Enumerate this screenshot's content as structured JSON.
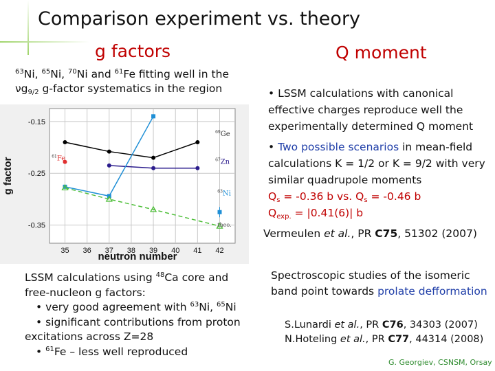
{
  "title": "Comparison experiment vs. theory",
  "g_section": {
    "heading": "g factors",
    "intro": [
      {
        "t": "63",
        "s": "sup"
      },
      {
        "t": "Ni, "
      },
      {
        "t": "65",
        "s": "sup"
      },
      {
        "t": "Ni, "
      },
      {
        "t": "70",
        "s": "sup"
      },
      {
        "t": "Ni and "
      },
      {
        "t": "61",
        "s": "sup"
      },
      {
        "t": "Fe fitting well in the "
      },
      {
        "t": "νg"
      },
      {
        "t": "9/2",
        "s": "sub"
      },
      {
        "t": " g-factor systematics in the region"
      }
    ],
    "calc_lines": [
      {
        "indent": false,
        "parts": [
          {
            "t": "LSSM calculations using "
          },
          {
            "t": "48",
            "s": "sup"
          },
          {
            "t": "Ca core and"
          }
        ]
      },
      {
        "indent": false,
        "parts": [
          {
            "t": "free-nucleon g factors:"
          }
        ]
      },
      {
        "indent": true,
        "parts": [
          {
            "t": "• very good agreement with "
          },
          {
            "t": "63",
            "s": "sup"
          },
          {
            "t": "Ni, "
          },
          {
            "t": "65",
            "s": "sup"
          },
          {
            "t": "Ni"
          }
        ]
      },
      {
        "indent": true,
        "parts": [
          {
            "t": "• significant contributions from proton"
          }
        ]
      },
      {
        "indent": false,
        "parts": [
          {
            "t": "excitations across Z=28"
          }
        ]
      },
      {
        "indent": true,
        "parts": [
          {
            "t": "• "
          },
          {
            "t": "61",
            "s": "sup"
          },
          {
            "t": "Fe – less well reproduced"
          }
        ]
      }
    ]
  },
  "q_section": {
    "heading": "Q moment",
    "items": [
      [
        {
          "t": "• LSSM calculations with canonical effective charges reproduce well the experimentally determined Q moment"
        }
      ],
      [
        {
          "t": "• "
        },
        {
          "t": "Two possible scenarios",
          "c": "blue"
        },
        {
          "t": " in mean-field calculations K = 1/2 or K = 9/2 with very similar quadrupole moments"
        }
      ]
    ],
    "q_values": [
      [
        {
          "t": "Q",
          "c": "red"
        },
        {
          "t": "s",
          "s": "sub",
          "c": "red"
        },
        {
          "t": " = -0.36 b vs. Q",
          "c": "red"
        },
        {
          "t": "s",
          "s": "sub",
          "c": "red"
        },
        {
          "t": " = -0.46 b",
          "c": "red"
        }
      ],
      [
        {
          "t": "Q",
          "c": "red"
        },
        {
          "t": "exp.",
          "s": "sub",
          "c": "red"
        },
        {
          "t": " = |0.41(6)| b",
          "c": "red"
        }
      ]
    ],
    "reference": [
      {
        "t": "Vermeulen "
      },
      {
        "t": "et al.",
        "i": true
      },
      {
        "t": ", PR "
      },
      {
        "t": "C75",
        "b": true
      },
      {
        "t": ", 51302 (2007)"
      }
    ]
  },
  "spectroscopy": [
    {
      "t": "Spectroscopic studies of the isomeric band point towards "
    },
    {
      "t": "prolate defformation",
      "c": "blue"
    }
  ],
  "references": [
    [
      {
        "t": "S.Lunardi "
      },
      {
        "t": "et al.",
        "i": true
      },
      {
        "t": ", PR "
      },
      {
        "t": "C76",
        "b": true
      },
      {
        "t": ", 34303 (2007)"
      }
    ],
    [
      {
        "t": "N.Hoteling "
      },
      {
        "t": "et al.",
        "i": true
      },
      {
        "t": ", PR "
      },
      {
        "t": "C77",
        "b": true
      },
      {
        "t": ", 44314 (2008)"
      }
    ]
  ],
  "credit": "G. Georgiev, CSNSM, Orsay",
  "chart_data": {
    "type": "line",
    "xlabel": "neutron number",
    "ylabel": "g factor",
    "xticks": [
      "35",
      "36",
      "37",
      "38",
      "39",
      "40",
      "41",
      "42"
    ],
    "yticks": [
      "-0.15",
      "-0.25",
      "-0.35"
    ],
    "xlim": [
      34.3,
      42.7
    ],
    "ylim": [
      -0.385,
      -0.125
    ],
    "grid": true,
    "series": [
      {
        "name": "Ge",
        "prefix": "69",
        "color": "#000000",
        "marker": "circle",
        "dash": false,
        "x": [
          35,
          37,
          39,
          41
        ],
        "y": [
          -0.19,
          -0.208,
          -0.22,
          -0.19
        ]
      },
      {
        "name": "Zn",
        "prefix": "67",
        "color": "#2a1b8c",
        "marker": "circle",
        "dash": false,
        "x": [
          37,
          39,
          41
        ],
        "y": [
          -0.235,
          -0.24,
          -0.24
        ]
      },
      {
        "name": "Ni",
        "prefix": "63",
        "color": "#1f8fd6",
        "marker": "square",
        "dash": false,
        "x": [
          35,
          37,
          39
        ],
        "y": [
          -0.276,
          -0.294,
          -0.14
        ],
        "yerr": [
          0.003,
          0.003,
          0.004
        ]
      },
      {
        "name": "Fe",
        "prefix": "61",
        "color": "#e03030",
        "marker": "circle",
        "dash": false,
        "x": [
          35
        ],
        "y": [
          -0.228
        ]
      },
      {
        "name": "theo.",
        "prefix": "",
        "color": "#4fbf3a",
        "marker": "triangle",
        "dash": true,
        "x": [
          35,
          37,
          39,
          42
        ],
        "y": [
          -0.278,
          -0.3,
          -0.32,
          -0.352
        ]
      },
      {
        "name": "Ni point",
        "prefix": "",
        "color": "#1f8fd6",
        "marker": "square",
        "dash": false,
        "label_hidden": true,
        "x": [
          42
        ],
        "y": [
          -0.325
        ],
        "yerr": [
          0.01
        ]
      }
    ],
    "series_labels": [
      {
        "series": "Ge",
        "x": 41.8,
        "y": -0.178
      },
      {
        "series": "Zn",
        "x": 41.8,
        "y": -0.232
      },
      {
        "series": "Fe",
        "x": 34.4,
        "y": -0.225
      },
      {
        "series": "Ni",
        "x": 41.9,
        "y": -0.293
      },
      {
        "series": "theo.",
        "x": 41.9,
        "y": -0.353
      }
    ]
  }
}
